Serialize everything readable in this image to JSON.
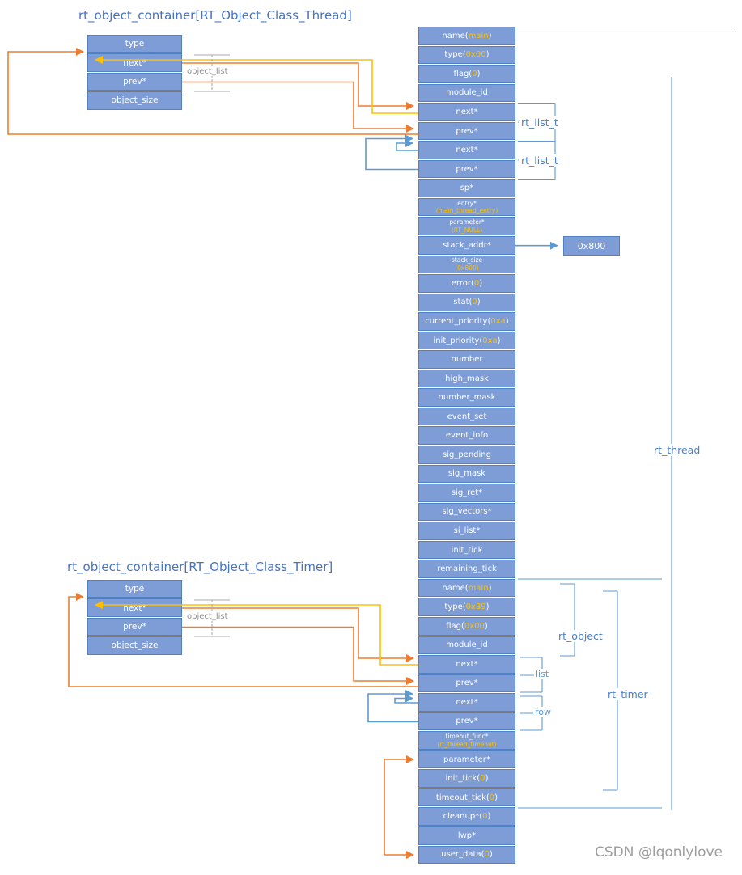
{
  "titles": {
    "thread_container": "rt_object_container[RT_Object_Class_Thread]",
    "timer_container": "rt_object_container[RT_Object_Class_Timer]"
  },
  "containers": {
    "thread": {
      "rows": [
        "type",
        "next*",
        "prev*",
        "object_size"
      ],
      "object_list_label": "object_list"
    },
    "timer": {
      "rows": [
        "type",
        "next*",
        "prev*",
        "object_size"
      ],
      "object_list_label": "object_list"
    }
  },
  "struct_rows": [
    {
      "label": "name",
      "value": "main"
    },
    {
      "label": "type",
      "value": "0x00"
    },
    {
      "label": "flag",
      "value": "0"
    },
    {
      "label": "module_id"
    },
    {
      "label": "next*"
    },
    {
      "label": "prev*"
    },
    {
      "label": "next*"
    },
    {
      "label": "prev*"
    },
    {
      "label": "sp*"
    },
    {
      "label": "entry*",
      "value": "main_thread_entry",
      "two_line": true
    },
    {
      "label": "parameter*",
      "value": "RT_NULL",
      "two_line": true
    },
    {
      "label": "stack_addr*"
    },
    {
      "label": "stack_size",
      "value": "0x800",
      "two_line": true
    },
    {
      "label": "error",
      "value": "0"
    },
    {
      "label": "stat",
      "value": "0"
    },
    {
      "label": "current_priority",
      "value": "0xa"
    },
    {
      "label": "init_priority",
      "value": "0xa"
    },
    {
      "label": "number"
    },
    {
      "label": "high_mask"
    },
    {
      "label": "number_mask"
    },
    {
      "label": "event_set"
    },
    {
      "label": "event_info"
    },
    {
      "label": "sig_pending"
    },
    {
      "label": "sig_mask"
    },
    {
      "label": "sig_ret*"
    },
    {
      "label": "sig_vectors*"
    },
    {
      "label": "si_list*"
    },
    {
      "label": "init_tick"
    },
    {
      "label": "remaining_tick"
    },
    {
      "label": "name",
      "value": "main"
    },
    {
      "label": "type",
      "value": "0x89"
    },
    {
      "label": "flag",
      "value": "0x00"
    },
    {
      "label": "module_id"
    },
    {
      "label": "next*"
    },
    {
      "label": "prev*"
    },
    {
      "label": "next*"
    },
    {
      "label": "prev*"
    },
    {
      "label": "timeout_func*",
      "value": "rt_thread_timeout",
      "two_line": true
    },
    {
      "label": "parameter*"
    },
    {
      "label": "init_tick",
      "value": "0"
    },
    {
      "label": "timeout_tick",
      "value": "0"
    },
    {
      "label": "cleanup*",
      "value": "0"
    },
    {
      "label": "lwp*"
    },
    {
      "label": "user_data",
      "value": "0"
    }
  ],
  "annotations": {
    "rt_list_t_1": "rt_list_t",
    "rt_list_t_2": "rt_list_t",
    "stack_value": "0x800",
    "rt_thread": "rt_thread",
    "rt_object": "rt_object",
    "list": "list",
    "row": "row",
    "rt_timer": "rt_timer"
  },
  "watermark": "CSDN @lqonlylove",
  "colors": {
    "box_fill": "#7E9DD6",
    "box_border": "#5081C2",
    "value": "#FFC000",
    "arrow_orange": "#ED7D31",
    "arrow_yellow": "#FFC000",
    "arrow_blue": "#5B9BD5",
    "label_blue": "#4472C4"
  }
}
